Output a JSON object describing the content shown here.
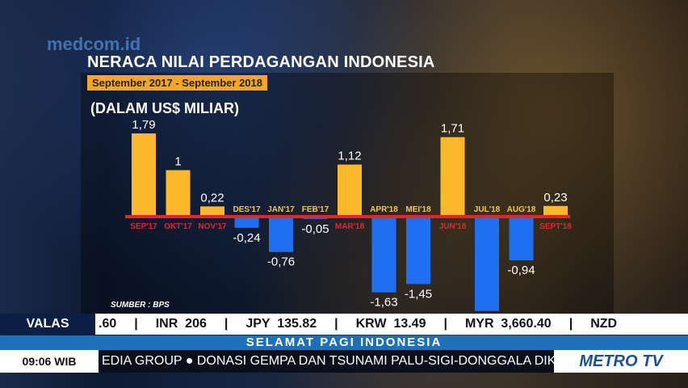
{
  "watermark": "medcom.id",
  "chart_data": {
    "type": "bar",
    "title": "NERACA NILAI PERDAGANGAN INDONESIA",
    "subtitle": "September 2017 - September 2018",
    "ylabel": "(DALAM US$ MILIAR)",
    "source": "SUMBER : BPS",
    "categories": [
      "SEP'17",
      "OKT'17",
      "NOV'17",
      "DES'17",
      "JAN'17",
      "FEB'17",
      "MAR'18",
      "APR'18",
      "MEI'18",
      "JUN'18",
      "JUL'18",
      "AUG'18",
      "SEPT'18"
    ],
    "values": [
      1.79,
      1,
      0.22,
      -0.24,
      -0.76,
      -0.05,
      1.12,
      -1.63,
      -1.45,
      1.71,
      -2.03,
      -0.94,
      0.23
    ],
    "value_labels": [
      "1,79",
      "1",
      "0,22",
      "-0,24",
      "-0,76",
      "-0,05",
      "1,12",
      "-1,63",
      "-1,45",
      "1,71",
      "",
      "-0,94",
      "0,23"
    ],
    "colors": {
      "positive": "#fbb82a",
      "negative": "#1f6ff2",
      "baseline": "#e0282a",
      "label_positive": "#e0282a",
      "label_negative": "#f5c842"
    },
    "grid": false
  },
  "ticker": {
    "valas_label": "VALAS",
    "rates": [
      ".60",
      "INR  206",
      "JPY  135.82",
      "KRW  13.49",
      "MYR  3,660.40",
      "NZD"
    ],
    "program": "SELAMAT PAGI INDONESIA",
    "time": "09:06 WIB",
    "crawl": "EDIA GROUP  ●  DONASI GEMPA DAN TSUNAMI PALU-SIGI-DONGGALA DIKEL",
    "channel": "METRO TV"
  }
}
